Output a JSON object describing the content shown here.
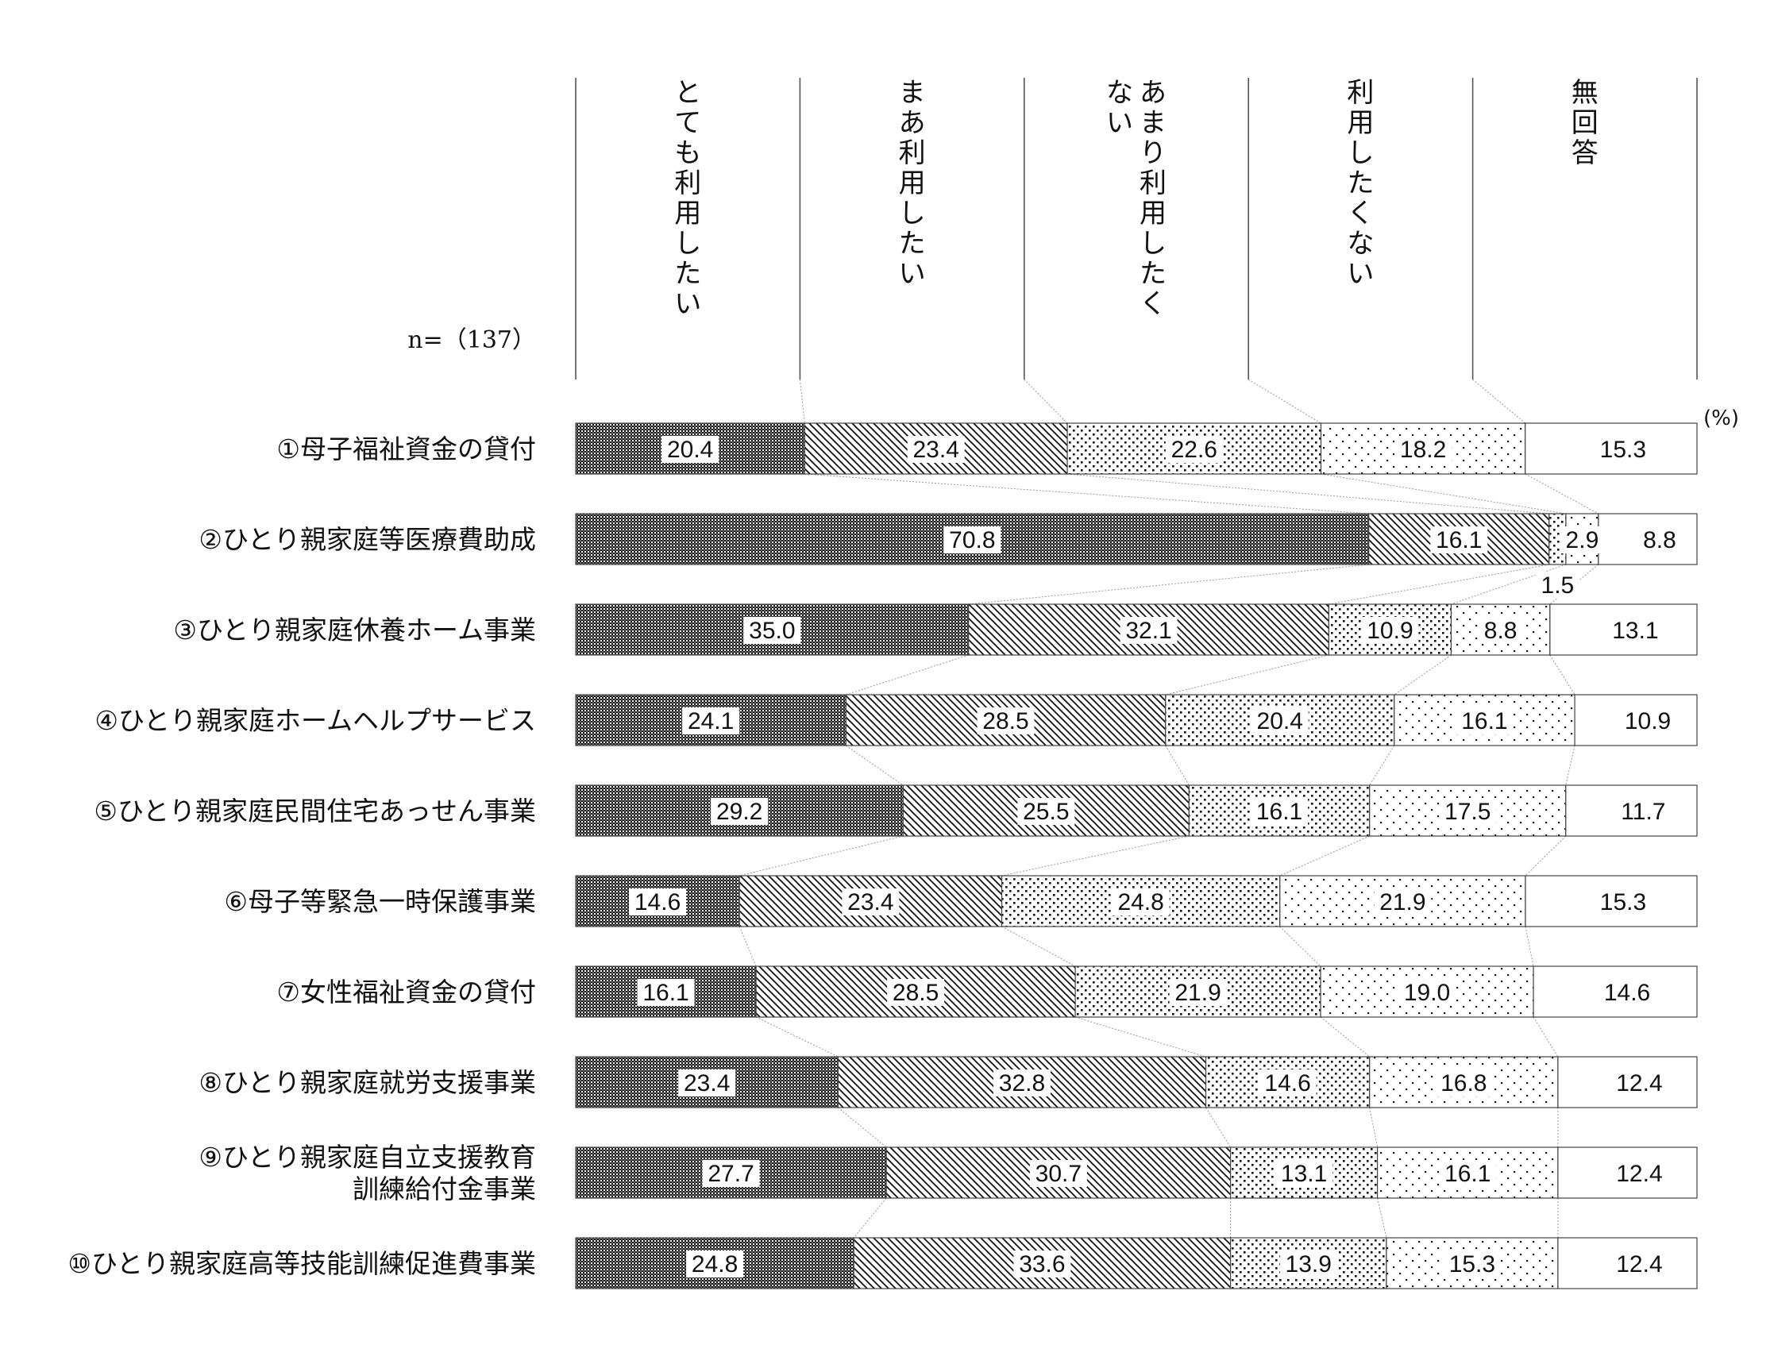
{
  "chart_data": {
    "type": "bar",
    "stacked": true,
    "orientation": "horizontal",
    "n_label": "n=（137）",
    "unit_label": "(%)",
    "categories": [
      "①母子福祉資金の貸付",
      "②ひとり親家庭等医療費助成",
      "③ひとり親家庭休養ホーム事業",
      "④ひとり親家庭ホームヘルプサービス",
      "⑤ひとり親家庭民間住宅あっせん事業",
      "⑥母子等緊急一時保護事業",
      "⑦女性福祉資金の貸付",
      "⑧ひとり親家庭就労支援事業",
      "⑨ひとり親家庭自立支援教育\n訓練給付金事業",
      "⑩ひとり親家庭高等技能訓練促進費事業"
    ],
    "series": [
      {
        "name": "とても利用したい",
        "values": [
          20.4,
          70.8,
          35.0,
          24.1,
          29.2,
          14.6,
          16.1,
          23.4,
          27.7,
          24.8
        ]
      },
      {
        "name": "まあ利用したい",
        "values": [
          23.4,
          16.1,
          32.1,
          28.5,
          25.5,
          23.4,
          28.5,
          32.8,
          30.7,
          33.6
        ]
      },
      {
        "name": "あまり利用したくない",
        "values": [
          22.6,
          1.5,
          10.9,
          20.4,
          16.1,
          24.8,
          21.9,
          14.6,
          13.1,
          13.9
        ]
      },
      {
        "name": "利用したくない",
        "values": [
          18.2,
          2.9,
          8.8,
          16.1,
          17.5,
          21.9,
          19.0,
          16.8,
          16.1,
          15.3
        ]
      },
      {
        "name": "無回答",
        "values": [
          15.3,
          8.8,
          13.1,
          10.9,
          11.7,
          15.3,
          14.6,
          12.4,
          12.4,
          12.4
        ]
      }
    ],
    "legend_position": "top (vertical column headers)",
    "xlim": [
      0,
      100
    ],
    "grid": false
  }
}
